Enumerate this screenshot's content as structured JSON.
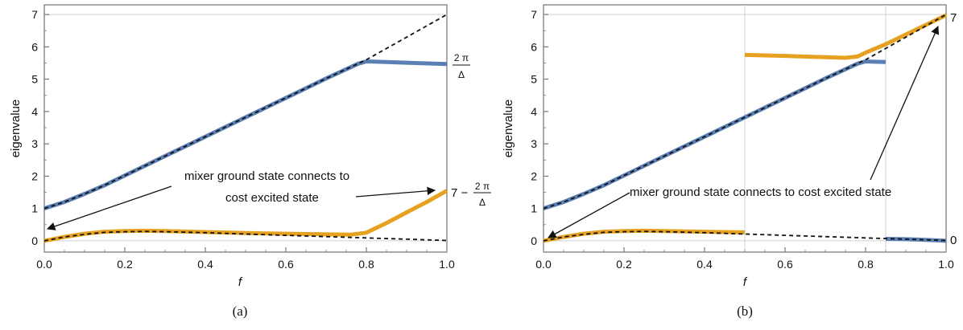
{
  "chart_data": [
    {
      "type": "line",
      "panel_label": "(a)",
      "xlabel": "f",
      "ylabel": "eigenvalue",
      "xlim": [
        0,
        1
      ],
      "ylim": [
        -0.35,
        7.3
      ],
      "xticks": [
        0.0,
        0.2,
        0.4,
        0.6,
        0.8,
        1.0
      ],
      "xtick_labels": [
        "0.0",
        "0.2",
        "0.4",
        "0.6",
        "0.8",
        "1.0"
      ],
      "yticks": [
        0,
        1,
        2,
        3,
        4,
        5,
        6,
        7
      ],
      "ytick_labels": [
        "0",
        "1",
        "2",
        "3",
        "4",
        "5",
        "6",
        "7"
      ],
      "grid": "y=0 and y=7 lines",
      "series": [
        {
          "color": "#5a7fb4",
          "style": "solid",
          "points": [
            [
              0,
              1.0
            ],
            [
              0.05,
              1.2
            ],
            [
              0.1,
              1.45
            ],
            [
              0.15,
              1.72
            ],
            [
              0.2,
              2.02
            ],
            [
              0.3,
              2.62
            ],
            [
              0.4,
              3.22
            ],
            [
              0.5,
              3.82
            ],
            [
              0.6,
              4.42
            ],
            [
              0.7,
              5.02
            ],
            [
              0.78,
              5.48
            ],
            [
              0.8,
              5.55
            ],
            [
              0.85,
              5.53
            ],
            [
              0.9,
              5.51
            ],
            [
              1.0,
              5.47
            ]
          ]
        },
        {
          "color": "#e5a11f",
          "style": "solid",
          "points": [
            [
              0,
              0.0
            ],
            [
              0.05,
              0.12
            ],
            [
              0.1,
              0.22
            ],
            [
              0.15,
              0.28
            ],
            [
              0.2,
              0.3
            ],
            [
              0.25,
              0.31
            ],
            [
              0.3,
              0.3
            ],
            [
              0.4,
              0.27
            ],
            [
              0.5,
              0.24
            ],
            [
              0.6,
              0.22
            ],
            [
              0.7,
              0.2
            ],
            [
              0.76,
              0.19
            ],
            [
              0.8,
              0.25
            ],
            [
              0.85,
              0.55
            ],
            [
              0.9,
              0.88
            ],
            [
              0.95,
              1.2
            ],
            [
              1.0,
              1.55
            ]
          ]
        },
        {
          "color": "#111111",
          "style": "dashed",
          "points": [
            [
              0,
              1.0
            ],
            [
              0.05,
              1.2
            ],
            [
              0.1,
              1.45
            ],
            [
              0.15,
              1.72
            ],
            [
              0.2,
              2.02
            ],
            [
              0.3,
              2.62
            ],
            [
              0.4,
              3.22
            ],
            [
              0.5,
              3.82
            ],
            [
              0.6,
              4.42
            ],
            [
              0.7,
              5.02
            ],
            [
              0.8,
              5.6
            ],
            [
              0.9,
              6.3
            ],
            [
              1.0,
              7.0
            ]
          ]
        },
        {
          "color": "#111111",
          "style": "dashed",
          "points": [
            [
              0,
              0.0
            ],
            [
              0.05,
              0.12
            ],
            [
              0.1,
              0.2
            ],
            [
              0.15,
              0.26
            ],
            [
              0.2,
              0.28
            ],
            [
              0.25,
              0.29
            ],
            [
              0.3,
              0.28
            ],
            [
              0.4,
              0.25
            ],
            [
              0.5,
              0.21
            ],
            [
              0.6,
              0.17
            ],
            [
              0.7,
              0.13
            ],
            [
              0.8,
              0.09
            ],
            [
              0.9,
              0.05
            ],
            [
              1.0,
              0.01
            ]
          ]
        }
      ],
      "annotations": [
        {
          "text": "mixer ground state connects to",
          "role": "line1"
        },
        {
          "text": "cost excited state",
          "role": "line2"
        }
      ],
      "right_labels": [
        {
          "value": 5.47,
          "numerator": "2 π",
          "denominator": "Δ",
          "prefix": ""
        },
        {
          "value": 1.55,
          "numerator": "2 π",
          "denominator": "Δ",
          "prefix": "7 −"
        }
      ]
    },
    {
      "type": "line",
      "panel_label": "(b)",
      "xlabel": "f",
      "ylabel": "eigenvalue",
      "xlim": [
        0,
        1
      ],
      "ylim": [
        -0.35,
        7.3
      ],
      "xticks": [
        0.0,
        0.2,
        0.4,
        0.6,
        0.8,
        1.0
      ],
      "xtick_labels": [
        "0.0",
        "0.2",
        "0.4",
        "0.6",
        "0.8",
        "1.0"
      ],
      "yticks": [
        0,
        1,
        2,
        3,
        4,
        5,
        6,
        7
      ],
      "ytick_labels": [
        "0",
        "1",
        "2",
        "3",
        "4",
        "5",
        "6",
        "7"
      ],
      "grid": "y=0 and y=7 lines; vertical lines at f=0.5 and f=0.85",
      "vlines": [
        0.5,
        0.85
      ],
      "series": [
        {
          "color": "#5a7fb4",
          "style": "solid",
          "points": [
            [
              0,
              1.0
            ],
            [
              0.05,
              1.2
            ],
            [
              0.1,
              1.45
            ],
            [
              0.15,
              1.72
            ],
            [
              0.2,
              2.02
            ],
            [
              0.3,
              2.62
            ],
            [
              0.4,
              3.22
            ],
            [
              0.5,
              3.82
            ],
            [
              0.6,
              4.42
            ],
            [
              0.7,
              5.02
            ],
            [
              0.78,
              5.48
            ],
            [
              0.8,
              5.55
            ],
            [
              0.82,
              5.54
            ],
            [
              0.85,
              5.53
            ]
          ]
        },
        {
          "color": "#5a7fb4",
          "style": "solid",
          "points": [
            [
              0.85,
              0.06
            ],
            [
              0.9,
              0.05
            ],
            [
              0.95,
              0.03
            ],
            [
              1.0,
              0.0
            ]
          ]
        },
        {
          "color": "#e5a11f",
          "style": "solid",
          "points": [
            [
              0,
              0.0
            ],
            [
              0.05,
              0.12
            ],
            [
              0.1,
              0.22
            ],
            [
              0.15,
              0.28
            ],
            [
              0.2,
              0.3
            ],
            [
              0.25,
              0.31
            ],
            [
              0.3,
              0.3
            ],
            [
              0.4,
              0.28
            ],
            [
              0.5,
              0.26
            ]
          ]
        },
        {
          "color": "#e5a11f",
          "style": "solid",
          "points": [
            [
              0.5,
              5.75
            ],
            [
              0.6,
              5.72
            ],
            [
              0.7,
              5.68
            ],
            [
              0.75,
              5.66
            ],
            [
              0.78,
              5.7
            ],
            [
              0.8,
              5.82
            ],
            [
              0.85,
              6.08
            ],
            [
              0.9,
              6.38
            ],
            [
              0.95,
              6.68
            ],
            [
              1.0,
              6.98
            ]
          ]
        },
        {
          "color": "#111111",
          "style": "dashed",
          "points": [
            [
              0,
              1.0
            ],
            [
              0.05,
              1.2
            ],
            [
              0.1,
              1.45
            ],
            [
              0.15,
              1.72
            ],
            [
              0.2,
              2.02
            ],
            [
              0.3,
              2.62
            ],
            [
              0.4,
              3.22
            ],
            [
              0.5,
              3.82
            ],
            [
              0.6,
              4.42
            ],
            [
              0.7,
              5.02
            ],
            [
              0.8,
              5.6
            ],
            [
              0.9,
              6.3
            ],
            [
              1.0,
              7.0
            ]
          ]
        },
        {
          "color": "#111111",
          "style": "dashed",
          "points": [
            [
              0,
              0.0
            ],
            [
              0.05,
              0.12
            ],
            [
              0.1,
              0.2
            ],
            [
              0.15,
              0.26
            ],
            [
              0.2,
              0.28
            ],
            [
              0.25,
              0.29
            ],
            [
              0.3,
              0.28
            ],
            [
              0.4,
              0.25
            ],
            [
              0.5,
              0.21
            ],
            [
              0.6,
              0.17
            ],
            [
              0.7,
              0.13
            ],
            [
              0.8,
              0.09
            ],
            [
              0.9,
              0.05
            ],
            [
              1.0,
              0.01
            ]
          ]
        }
      ],
      "annotations": [
        {
          "text": "mixer ground state connects to cost excited state",
          "role": "line1"
        }
      ],
      "right_labels": [
        {
          "value": 7.0,
          "text": "7"
        },
        {
          "value": 0.0,
          "text": "0"
        }
      ]
    }
  ]
}
